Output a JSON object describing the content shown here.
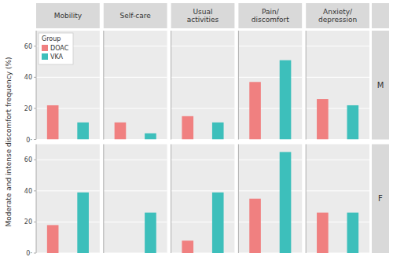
{
  "chart_data": [
    {
      "type": "bar",
      "title": "M",
      "ylabel": "Moderate and intense discomfort frequency (%)",
      "legend_title": "Group",
      "categories": [
        "Mobility",
        "Self-care",
        "Usual\nactivities",
        "Pain/\ndiscomfort",
        "Anxiety/\ndepression"
      ],
      "series": [
        {
          "name": "DOAC",
          "color": "#F08080",
          "values": [
            22,
            11,
            15,
            37,
            26
          ]
        },
        {
          "name": "VKA",
          "color": "#3DBFBB",
          "values": [
            11,
            4,
            11,
            51,
            22
          ]
        }
      ],
      "ylim": [
        0,
        70
      ],
      "yticks": [
        {
          "value": 0,
          "label": "0·"
        },
        20,
        40,
        60
      ],
      "grid": true,
      "legend": "upper left"
    },
    {
      "type": "bar",
      "title": "F",
      "categories": [
        "Mobility",
        "Self-care",
        "Usual\nactivities",
        "Pain/\ndiscomfort",
        "Anxiety/\ndepression"
      ],
      "series": [
        {
          "name": "DOAC",
          "color": "#F08080",
          "values": [
            18,
            0,
            8,
            35,
            26
          ]
        },
        {
          "name": "VKA",
          "color": "#3DBFBB",
          "values": [
            39,
            26,
            39,
            65,
            26
          ]
        }
      ],
      "ylim": [
        0,
        70
      ],
      "yticks": [
        {
          "value": 0,
          "label": "0·"
        },
        20,
        40,
        60
      ],
      "grid": true
    }
  ]
}
